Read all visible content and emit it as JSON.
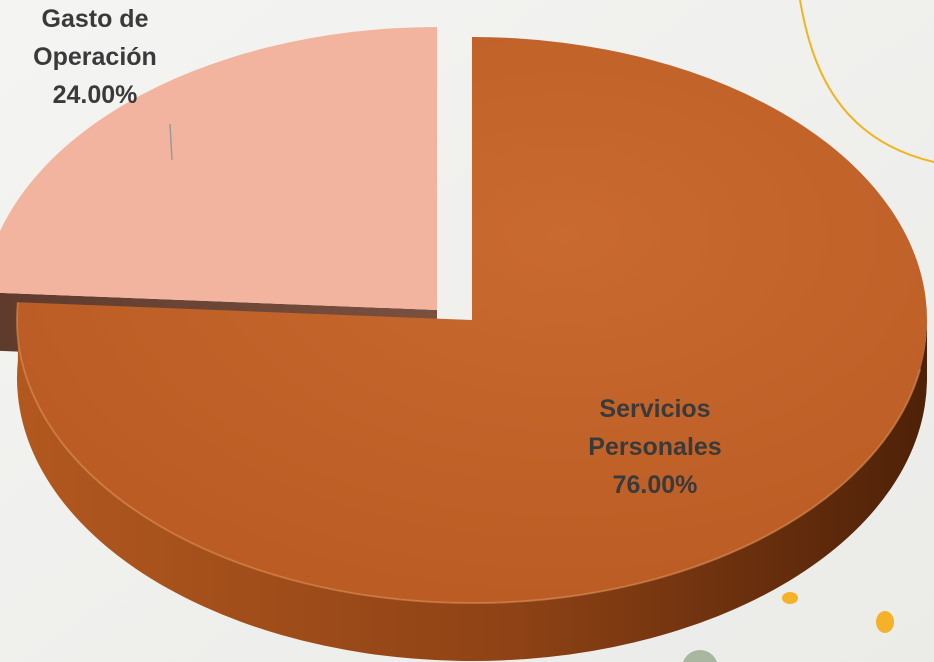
{
  "chart_data": {
    "type": "pie",
    "style": "3d-exploded",
    "title": "",
    "legend": "none",
    "slices": [
      {
        "label_lines": [
          "Gasto de",
          "Operación"
        ],
        "value": 24.0,
        "value_label": "24.00%",
        "color": "#f2b49e",
        "exploded": true
      },
      {
        "label_lines": [
          "Servicios",
          "Personales"
        ],
        "value": 76.0,
        "value_label": "76.00%",
        "color": "#c4622a",
        "exploded": false
      }
    ]
  },
  "decorations": {
    "accent_line_color": "#f0b420",
    "dot_colors": [
      "#f5b12a",
      "#a9b7a0"
    ]
  }
}
